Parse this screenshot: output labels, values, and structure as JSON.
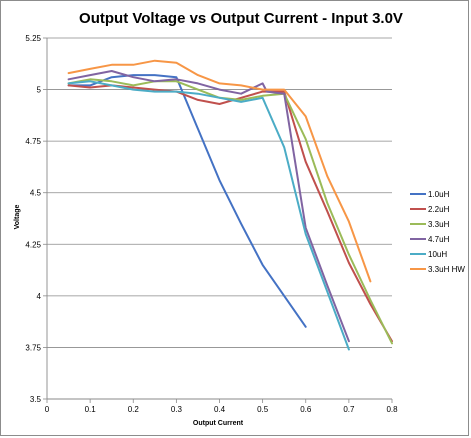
{
  "chart_data": {
    "type": "line",
    "title": "Output Voltage vs Output Current - Input 3.0V",
    "xlabel": "Output Current",
    "ylabel": "Voltage",
    "xlim": [
      0,
      0.8
    ],
    "ylim": [
      3.5,
      5.25
    ],
    "xticks": [
      0,
      0.1,
      0.2,
      0.3,
      0.4,
      0.5,
      0.6,
      0.7,
      0.8
    ],
    "xtick_labels": [
      "0",
      "0.1",
      "0.2",
      "0.3",
      "0.4",
      "0.5",
      "0.6",
      "0.7",
      "0.8"
    ],
    "yticks": [
      3.5,
      3.75,
      4,
      4.25,
      4.5,
      4.75,
      5,
      5.25
    ],
    "ytick_labels": [
      "3.5",
      "3.75",
      "4",
      "4.25",
      "4.5",
      "4.75",
      "5",
      "5.25"
    ],
    "grid": "horizontal",
    "legend_position": "right",
    "series": [
      {
        "name": "1.0uH",
        "color": "#4472C4",
        "x": [
          0.05,
          0.1,
          0.15,
          0.2,
          0.25,
          0.3,
          0.35,
          0.4,
          0.45,
          0.5,
          0.55,
          0.6
        ],
        "y": [
          5.02,
          5.02,
          5.06,
          5.07,
          5.07,
          5.06,
          4.81,
          4.56,
          4.35,
          4.15,
          4.0,
          3.85
        ]
      },
      {
        "name": "2.2uH",
        "color": "#C0504D",
        "x": [
          0.05,
          0.1,
          0.15,
          0.2,
          0.25,
          0.3,
          0.35,
          0.4,
          0.45,
          0.5,
          0.55,
          0.6,
          0.65,
          0.7,
          0.75,
          0.8
        ],
        "y": [
          5.02,
          5.01,
          5.02,
          5.01,
          5.0,
          4.99,
          4.95,
          4.93,
          4.96,
          4.99,
          4.99,
          4.65,
          4.41,
          4.16,
          3.96,
          3.78
        ]
      },
      {
        "name": "3.3uH",
        "color": "#9BBB59",
        "x": [
          0.05,
          0.1,
          0.15,
          0.2,
          0.25,
          0.3,
          0.35,
          0.4,
          0.45,
          0.5,
          0.55,
          0.6,
          0.65,
          0.7,
          0.75,
          0.8
        ],
        "y": [
          5.03,
          5.05,
          5.04,
          5.02,
          5.04,
          5.04,
          5.0,
          4.96,
          4.95,
          4.97,
          4.98,
          4.76,
          4.45,
          4.2,
          3.98,
          3.77
        ]
      },
      {
        "name": "4.7uH",
        "color": "#8064A2",
        "x": [
          0.05,
          0.1,
          0.15,
          0.2,
          0.25,
          0.3,
          0.35,
          0.4,
          0.45,
          0.5,
          0.51,
          0.55,
          0.6,
          0.65,
          0.7
        ],
        "y": [
          5.05,
          5.07,
          5.09,
          5.06,
          5.04,
          5.05,
          5.03,
          5.0,
          4.98,
          5.03,
          4.99,
          4.98,
          4.33,
          4.05,
          3.78
        ]
      },
      {
        "name": "10uH",
        "color": "#4BACC6",
        "x": [
          0.05,
          0.1,
          0.15,
          0.2,
          0.25,
          0.3,
          0.35,
          0.4,
          0.45,
          0.5,
          0.55,
          0.6,
          0.65,
          0.7
        ],
        "y": [
          5.03,
          5.04,
          5.02,
          5.0,
          4.99,
          4.99,
          4.98,
          4.96,
          4.94,
          4.96,
          4.72,
          4.3,
          4.02,
          3.74
        ]
      },
      {
        "name": "3.3uH HW",
        "color": "#F79646",
        "x": [
          0.05,
          0.1,
          0.15,
          0.2,
          0.25,
          0.3,
          0.35,
          0.4,
          0.45,
          0.5,
          0.55,
          0.6,
          0.65,
          0.7,
          0.75
        ],
        "y": [
          5.08,
          5.1,
          5.12,
          5.12,
          5.14,
          5.13,
          5.07,
          5.03,
          5.02,
          5.0,
          5.0,
          4.87,
          4.58,
          4.36,
          4.07
        ]
      }
    ]
  }
}
